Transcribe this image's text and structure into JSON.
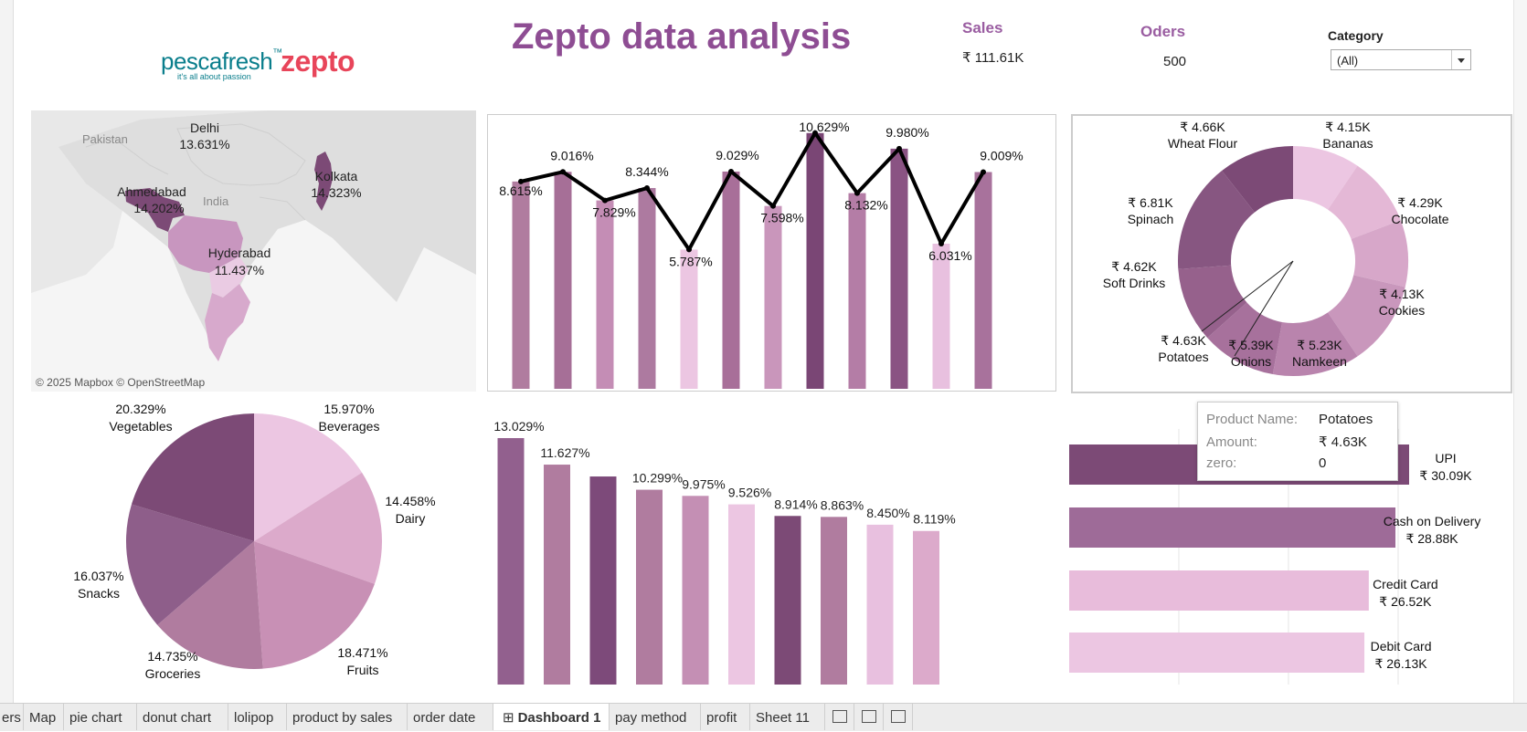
{
  "dashboard": {
    "title": "Zepto data analysis",
    "kpis": {
      "sales_label": "Sales",
      "sales_value": "₹ 111.61K",
      "orders_label": "Oders",
      "orders_value": "500"
    },
    "filter": {
      "label": "Category",
      "value": "(All)"
    },
    "logos": {
      "pescafresh": "pescafresh",
      "pescafresh_tm": "™",
      "pescafresh_tagline": "it's all about passion",
      "zepto": "zepto"
    }
  },
  "map": {
    "attribution": "© 2025 Mapbox © OpenStreetMap",
    "base_labels": [
      "Pakistan",
      "India"
    ],
    "cities": [
      {
        "name": "Delhi",
        "value": "13.631%"
      },
      {
        "name": "Ahmedabad",
        "value": "14.202%"
      },
      {
        "name": "Kolkata",
        "value": "14.323%"
      },
      {
        "name": "Hyderabad",
        "value": "11.437%"
      }
    ]
  },
  "chart_data": [
    {
      "type": "bar",
      "overlay": "line",
      "values": [
        8.615,
        9.016,
        7.829,
        8.344,
        5.787,
        9.029,
        7.598,
        10.629,
        8.132,
        9.98,
        6.031,
        9.009
      ],
      "labels": [
        "8.615%",
        "9.016%",
        "7.829%",
        "8.344%",
        "5.787%",
        "9.029%",
        "7.598%",
        "10.629%",
        "8.132%",
        "9.980%",
        "6.031%",
        "9.009%"
      ],
      "colors": [
        "#b07c9f",
        "#a66f97",
        "#c48db5",
        "#ad7aa0",
        "#ecc6e2",
        "#a86f99",
        "#c996bb",
        "#7a4675",
        "#b47da6",
        "#8a5383",
        "#e8c0df",
        "#a8729c"
      ]
    },
    {
      "type": "pie",
      "donut": true,
      "slices": [
        {
          "label": "Bananas",
          "value": 4.15,
          "text": "₹ 4.15K"
        },
        {
          "label": "Chocolate",
          "value": 4.29,
          "text": "₹ 4.29K"
        },
        {
          "label": "Cookies",
          "value": 4.13,
          "text": "₹ 4.13K"
        },
        {
          "label": "Namkeen",
          "value": 5.23,
          "text": "₹ 5.23K"
        },
        {
          "label": "Onions",
          "value": 5.39,
          "text": "₹ 5.39K"
        },
        {
          "label": "Potatoes",
          "value": 4.63,
          "text": "₹ 4.63K"
        },
        {
          "label": "Soft Drinks",
          "value": 4.62,
          "text": "₹ 4.62K"
        },
        {
          "label": "Spinach",
          "value": 6.81,
          "text": "₹ 6.81K"
        },
        {
          "label": "Wheat Flour",
          "value": 4.66,
          "text": "₹ 4.66K"
        }
      ]
    },
    {
      "type": "pie",
      "slices": [
        {
          "label": "Beverages",
          "value": 15.97,
          "text": "15.970%"
        },
        {
          "label": "Dairy",
          "value": 14.458,
          "text": "14.458%"
        },
        {
          "label": "Fruits",
          "value": 18.471,
          "text": "18.471%"
        },
        {
          "label": "Groceries",
          "value": 14.735,
          "text": "14.735%"
        },
        {
          "label": "Snacks",
          "value": 16.037,
          "text": "16.037%"
        },
        {
          "label": "Vegetables",
          "value": 20.329,
          "text": "20.329%"
        }
      ],
      "colors": [
        "#ecc6e2",
        "#dcaacb",
        "#c890b5",
        "#b07c9f",
        "#8e5e8a",
        "#7c4a76"
      ]
    },
    {
      "type": "bar",
      "values": [
        13.029,
        11.627,
        11.0,
        10.299,
        9.975,
        9.526,
        8.914,
        8.863,
        8.45,
        8.119
      ],
      "labels": [
        "13.029%",
        "11.627%",
        "",
        "10.299%",
        "9.975%",
        "9.526%",
        "8.914%",
        "8.863%",
        "8.450%",
        "8.119%"
      ],
      "colors": [
        "#92608e",
        "#b07c9f",
        "#7d4a7a",
        "#b07c9f",
        "#c48fb4",
        "#ecc6e2",
        "#7c4a76",
        "#b07c9f",
        "#e8c0df",
        "#dcaacb"
      ]
    },
    {
      "type": "bar",
      "orientation": "horizontal",
      "categories": [
        "UPI",
        "Cash on Delivery",
        "Credit Card",
        "Debit Card"
      ],
      "values": [
        30.09,
        28.88,
        26.52,
        26.13
      ],
      "labels": [
        "₹ 30.09K",
        "₹ 28.88K",
        "₹ 26.52K",
        "₹ 26.13K"
      ],
      "colors": [
        "#7c4a76",
        "#9e6b98",
        "#e8bcdb",
        "#ecc6e2"
      ]
    }
  ],
  "tooltip": {
    "rows": [
      {
        "key": "Product Name:",
        "value": "Potatoes"
      },
      {
        "key": "Amount:",
        "value": "₹ 4.63K"
      },
      {
        "key": "zero:",
        "value": "0"
      }
    ]
  },
  "tabs": [
    {
      "label": "ers"
    },
    {
      "label": "Map"
    },
    {
      "label": "pie chart"
    },
    {
      "label": "donut chart"
    },
    {
      "label": "lolipop"
    },
    {
      "label": "product by sales"
    },
    {
      "label": "order date"
    },
    {
      "label": "Dashboard 1",
      "active": true
    },
    {
      "label": "pay method"
    },
    {
      "label": "profit"
    },
    {
      "label": "Sheet 11"
    }
  ],
  "tab_icons": [
    "new-worksheet-icon",
    "new-dashboard-icon",
    "new-story-icon"
  ]
}
